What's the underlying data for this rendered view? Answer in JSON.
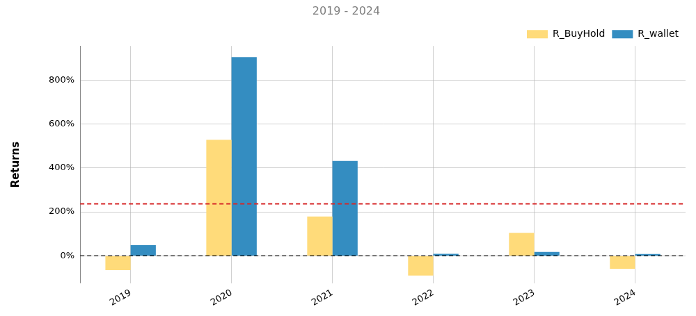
{
  "chart_data": {
    "type": "bar",
    "title": "2019 - 2024",
    "y_label": "Returns",
    "categories": [
      "2019",
      "2020",
      "2021",
      "2022",
      "2023",
      "2024"
    ],
    "series": [
      {
        "name": "R_BuyHold",
        "color": "#ffdb7a",
        "values": [
          -65,
          528,
          179,
          -90,
          105,
          -59
        ]
      },
      {
        "name": "R_wallet",
        "color": "#348dc1",
        "values": [
          49,
          904,
          432,
          9,
          18,
          8
        ]
      }
    ],
    "ylim": [
      -125,
      955
    ],
    "yticks": [
      {
        "value": 0,
        "label": "0%"
      },
      {
        "value": 200,
        "label": "200%"
      },
      {
        "value": 400,
        "label": "400%"
      },
      {
        "value": 600,
        "label": "600%"
      },
      {
        "value": 800,
        "label": "800%"
      }
    ],
    "grid": true,
    "legend": "upper right",
    "hlines": [
      {
        "value": 237,
        "color": "#d62728",
        "line_style": "dashed"
      },
      {
        "value": 0,
        "color": "#000000",
        "line_style": "dashed"
      }
    ]
  }
}
